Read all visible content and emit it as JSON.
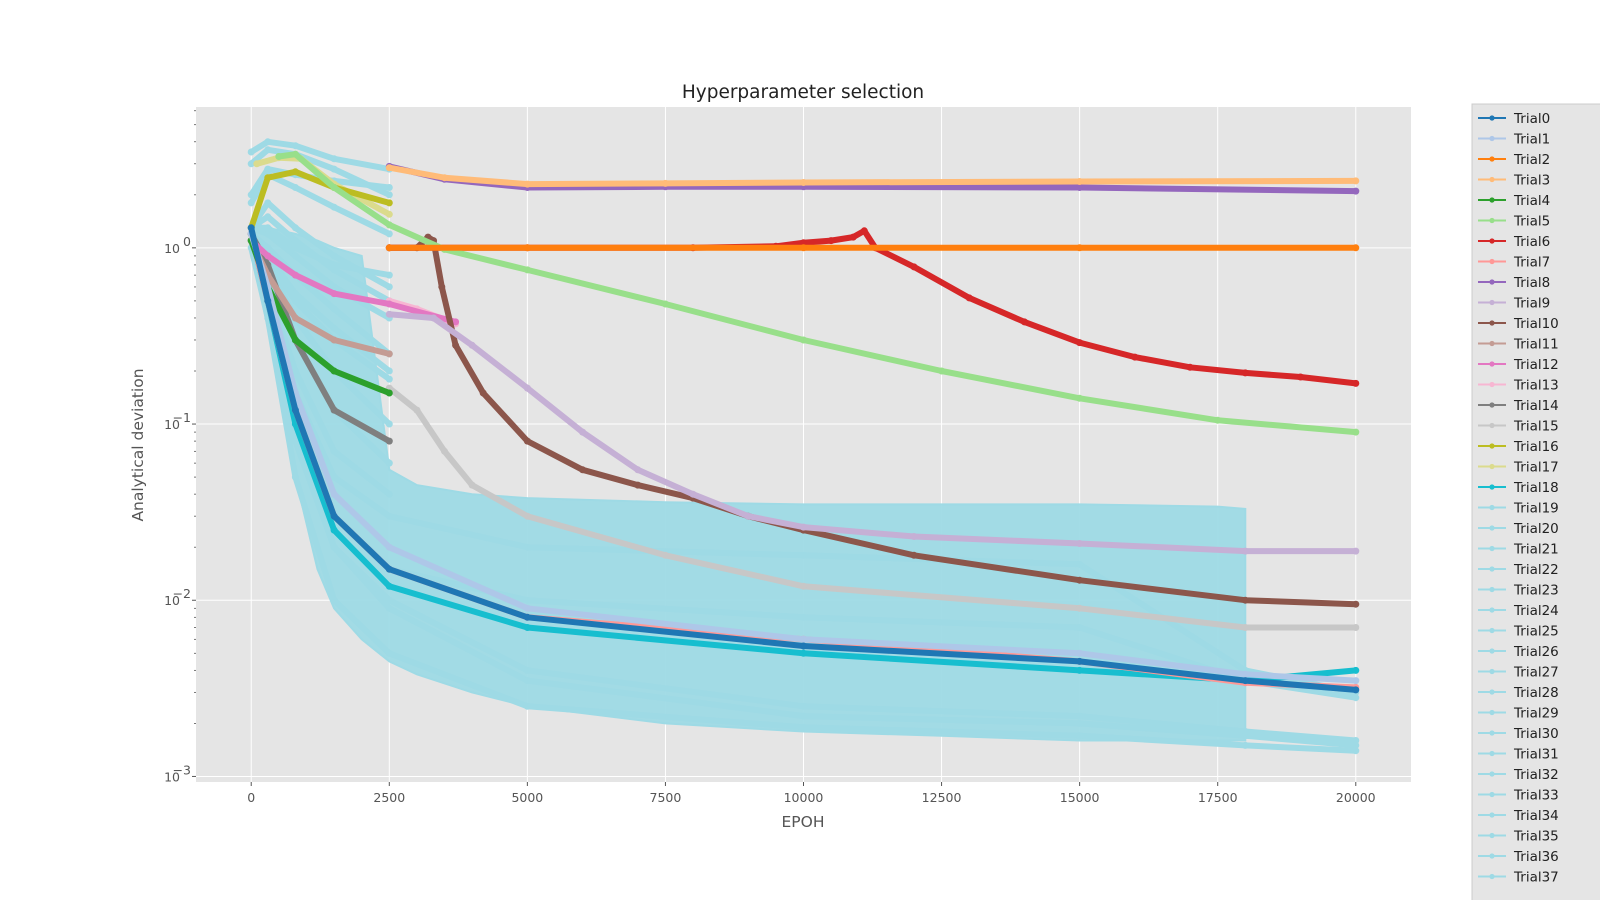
{
  "chart_data": {
    "type": "line",
    "title": "Hyperparameter selection",
    "xlabel": "EPOH",
    "ylabel": "Analytical deviation",
    "yscale": "log",
    "xlim": [
      -1000,
      21000
    ],
    "ylim": [
      0.00093,
      6.3
    ],
    "x_ticks": [
      0,
      2500,
      5000,
      7500,
      10000,
      12500,
      15000,
      17500,
      20000
    ],
    "x_tick_labels": [
      "0",
      "2500",
      "5000",
      "7500",
      "10000",
      "12500",
      "15000",
      "17500",
      "20000"
    ],
    "y_ticks": [
      0.001,
      0.01,
      0.1,
      1
    ],
    "y_tick_labels": [
      {
        "base": "10",
        "exp": "−3"
      },
      {
        "base": "10",
        "exp": "−2"
      },
      {
        "base": "10",
        "exp": "−1"
      },
      {
        "base": "10",
        "exp": "0"
      }
    ],
    "grid": true,
    "legend_position": "outside right",
    "series": [
      {
        "name": "Trial0",
        "color": "#1f77b4",
        "x": [
          0,
          300,
          800,
          1500,
          2500,
          5000,
          10000,
          15000,
          18000,
          20000
        ],
        "y": [
          1.3,
          0.5,
          0.12,
          0.03,
          0.015,
          0.008,
          0.0055,
          0.0045,
          0.0035,
          0.0031
        ]
      },
      {
        "name": "Trial1",
        "color": "#aec7e8",
        "x": [
          0,
          300,
          800,
          1500,
          2500,
          5000,
          10000,
          15000,
          18000,
          20000
        ],
        "y": [
          1.2,
          0.6,
          0.15,
          0.04,
          0.02,
          0.009,
          0.006,
          0.005,
          0.0038,
          0.0035
        ]
      },
      {
        "name": "Trial2",
        "color": "#ff7f0e",
        "x": [
          2500,
          5000,
          10000,
          15000,
          20000
        ],
        "y": [
          1.0,
          1.0,
          1.0,
          1.0,
          1.0
        ]
      },
      {
        "name": "Trial3",
        "color": "#ffbb78",
        "x": [
          2500,
          3500,
          5000,
          7500,
          10000,
          15000,
          20000
        ],
        "y": [
          2.85,
          2.5,
          2.3,
          2.32,
          2.35,
          2.38,
          2.4
        ]
      },
      {
        "name": "Trial4",
        "color": "#2ca02c",
        "x": [
          0,
          300,
          800,
          1500,
          2500
        ],
        "y": [
          1.1,
          0.6,
          0.3,
          0.2,
          0.15
        ]
      },
      {
        "name": "Trial5",
        "color": "#98df8a",
        "x": [
          500,
          800,
          1500,
          2500,
          3500,
          5000,
          7500,
          10000,
          12500,
          15000,
          17500,
          20000
        ],
        "y": [
          3.3,
          3.4,
          2.2,
          1.35,
          0.98,
          0.75,
          0.48,
          0.3,
          0.2,
          0.14,
          0.105,
          0.09
        ]
      },
      {
        "name": "Trial6",
        "color": "#d62728",
        "x": [
          2500,
          5000,
          8000,
          9500,
          10000,
          10500,
          10900,
          11100,
          11300,
          12000,
          13000,
          14000,
          15000,
          16000,
          17000,
          18000,
          19000,
          20000
        ],
        "y": [
          1.0,
          1.0,
          1.0,
          1.02,
          1.07,
          1.1,
          1.15,
          1.25,
          1.0,
          0.78,
          0.52,
          0.38,
          0.29,
          0.24,
          0.21,
          0.195,
          0.185,
          0.17
        ]
      },
      {
        "name": "Trial7",
        "color": "#ff9896",
        "x": [
          0,
          300,
          800,
          1500,
          2500,
          5000,
          10000,
          15000,
          18000,
          20000
        ],
        "y": [
          1.2,
          0.5,
          0.12,
          0.03,
          0.015,
          0.008,
          0.006,
          0.0045,
          0.0034,
          0.0032
        ]
      },
      {
        "name": "Trial8",
        "color": "#9467bd",
        "x": [
          2500,
          3500,
          5000,
          7500,
          10000,
          15000,
          20000
        ],
        "y": [
          2.9,
          2.45,
          2.2,
          2.22,
          2.22,
          2.2,
          2.1
        ]
      },
      {
        "name": "Trial9",
        "color": "#c5b0d5",
        "x": [
          2500,
          3300,
          4000,
          5000,
          6000,
          7000,
          8000,
          9000,
          10000,
          12000,
          15000,
          18000,
          20000
        ],
        "y": [
          0.42,
          0.4,
          0.28,
          0.16,
          0.09,
          0.055,
          0.04,
          0.03,
          0.026,
          0.023,
          0.021,
          0.019,
          0.019
        ]
      },
      {
        "name": "Trial10",
        "color": "#8c564b",
        "x": [
          2500,
          3000,
          3200,
          3300,
          3450,
          3700,
          4200,
          5000,
          6000,
          7000,
          8000,
          9000,
          10000,
          12000,
          15000,
          18000,
          20000
        ],
        "y": [
          1.0,
          1.0,
          1.15,
          1.1,
          0.6,
          0.28,
          0.15,
          0.08,
          0.055,
          0.045,
          0.038,
          0.03,
          0.025,
          0.018,
          0.013,
          0.01,
          0.0095
        ]
      },
      {
        "name": "Trial11",
        "color": "#c49c94",
        "x": [
          0,
          300,
          800,
          1500,
          2500
        ],
        "y": [
          1.1,
          0.7,
          0.4,
          0.3,
          0.25
        ]
      },
      {
        "name": "Trial12",
        "color": "#e377c2",
        "x": [
          0,
          300,
          800,
          1500,
          2500,
          3700
        ],
        "y": [
          1.1,
          0.9,
          0.7,
          0.55,
          0.48,
          0.38
        ]
      },
      {
        "name": "Trial13",
        "color": "#f7b6d2",
        "x": [
          2500,
          3000,
          3700
        ],
        "y": [
          0.5,
          0.45,
          0.37
        ]
      },
      {
        "name": "Trial14",
        "color": "#7f7f7f",
        "x": [
          0,
          300,
          800,
          1500,
          2500
        ],
        "y": [
          1.2,
          0.8,
          0.3,
          0.12,
          0.08
        ]
      },
      {
        "name": "Trial15",
        "color": "#c7c7c7",
        "x": [
          2500,
          3000,
          3500,
          4000,
          5000,
          7500,
          10000,
          15000,
          18000,
          20000
        ],
        "y": [
          0.16,
          0.12,
          0.07,
          0.045,
          0.03,
          0.018,
          0.012,
          0.009,
          0.007,
          0.007
        ]
      },
      {
        "name": "Trial16",
        "color": "#bcbd22",
        "x": [
          0,
          300,
          800,
          1500,
          2500
        ],
        "y": [
          1.3,
          2.5,
          2.7,
          2.2,
          1.8
        ]
      },
      {
        "name": "Trial17",
        "color": "#dbdb8d",
        "x": [
          100,
          500,
          900,
          1500,
          2500
        ],
        "y": [
          3.0,
          3.25,
          3.2,
          2.3,
          1.55
        ]
      },
      {
        "name": "Trial18",
        "color": "#17becf",
        "x": [
          0,
          300,
          800,
          1500,
          2500,
          5000,
          10000,
          15000,
          18000,
          20000
        ],
        "y": [
          1.2,
          0.5,
          0.1,
          0.025,
          0.012,
          0.007,
          0.005,
          0.004,
          0.0035,
          0.004
        ]
      },
      {
        "name": "Trial19",
        "color": "#9edae5",
        "x": [
          0,
          300,
          800,
          1500,
          2500
        ],
        "y": [
          3.5,
          4.0,
          3.8,
          3.2,
          2.8
        ]
      },
      {
        "name": "Trial20",
        "color": "#9edae5",
        "x": [
          0,
          300,
          800,
          1500,
          2500
        ],
        "y": [
          3.0,
          3.6,
          3.4,
          2.8,
          2.0
        ]
      },
      {
        "name": "Trial21",
        "color": "#9edae5",
        "x": [
          0,
          300,
          800,
          1500,
          2500
        ],
        "y": [
          1.8,
          2.6,
          2.2,
          1.7,
          1.2
        ]
      },
      {
        "name": "Trial22",
        "color": "#9edae5",
        "x": [
          0,
          300,
          800,
          1500,
          2500
        ],
        "y": [
          1.3,
          1.8,
          1.3,
          0.9,
          0.6
        ]
      },
      {
        "name": "Trial23",
        "color": "#9edae5",
        "x": [
          0,
          300,
          800,
          1500,
          2500
        ],
        "y": [
          1.3,
          1.2,
          0.9,
          0.6,
          0.4
        ]
      },
      {
        "name": "Trial24",
        "color": "#9edae5",
        "x": [
          0,
          300,
          800,
          1500,
          2500
        ],
        "y": [
          1.2,
          1.0,
          0.7,
          0.45,
          0.25
        ]
      },
      {
        "name": "Trial25",
        "color": "#9edae5",
        "x": [
          0,
          300,
          800,
          1500,
          2500
        ],
        "y": [
          1.2,
          0.9,
          0.55,
          0.35,
          0.2
        ]
      },
      {
        "name": "Trial26",
        "color": "#9edae5",
        "x": [
          0,
          300,
          800,
          1500,
          2500
        ],
        "y": [
          1.2,
          0.8,
          0.4,
          0.2,
          0.1
        ]
      },
      {
        "name": "Trial27",
        "color": "#9edae5",
        "x": [
          0,
          300,
          800,
          1500,
          2500
        ],
        "y": [
          1.1,
          0.7,
          0.3,
          0.12,
          0.06
        ]
      },
      {
        "name": "Trial28",
        "color": "#9edae5",
        "x": [
          0,
          300,
          800,
          1500,
          2500
        ],
        "y": [
          1.1,
          0.6,
          0.2,
          0.07,
          0.04
        ]
      },
      {
        "name": "Trial29",
        "color": "#9edae5",
        "x": [
          0,
          300,
          800,
          1500,
          2500,
          5000,
          10000,
          15000,
          18000,
          20000
        ],
        "y": [
          1.1,
          0.5,
          0.1,
          0.02,
          0.01,
          0.004,
          0.0025,
          0.0022,
          0.0018,
          0.0016
        ]
      },
      {
        "name": "Trial30",
        "color": "#9edae5",
        "x": [
          0,
          300,
          800,
          1500,
          2500,
          5000,
          10000,
          15000,
          18000,
          20000
        ],
        "y": [
          1.0,
          0.4,
          0.05,
          0.01,
          0.005,
          0.0025,
          0.0019,
          0.0017,
          0.0015,
          0.0014
        ]
      },
      {
        "name": "Trial31",
        "color": "#9edae5",
        "x": [
          0,
          300,
          800,
          1500,
          2500,
          5000,
          10000,
          15000,
          18000,
          20000
        ],
        "y": [
          1.2,
          0.45,
          0.08,
          0.02,
          0.009,
          0.0035,
          0.0022,
          0.002,
          0.0017,
          0.0015
        ]
      },
      {
        "name": "Trial32",
        "color": "#9edae5",
        "x": [
          0,
          300,
          800,
          1500,
          2500
        ],
        "y": [
          1.2,
          0.85,
          0.5,
          0.3,
          0.18
        ]
      },
      {
        "name": "Trial33",
        "color": "#9edae5",
        "x": [
          0,
          300,
          800,
          1500,
          2500
        ],
        "y": [
          1.3,
          1.5,
          1.1,
          0.75,
          0.5
        ]
      },
      {
        "name": "Trial34",
        "color": "#9edae5",
        "x": [
          0,
          300,
          800,
          1500,
          2500
        ],
        "y": [
          1.3,
          1.3,
          1.0,
          0.8,
          0.7
        ]
      },
      {
        "name": "Trial35",
        "color": "#9edae5",
        "x": [
          0,
          300,
          800,
          1500,
          2500
        ],
        "y": [
          2.0,
          2.8,
          2.6,
          2.4,
          2.2
        ]
      },
      {
        "name": "Trial36",
        "color": "#9edae5",
        "x": [
          0,
          300,
          800,
          1500,
          2500,
          5000,
          10000,
          15000,
          18000,
          20000
        ],
        "y": [
          1.1,
          0.5,
          0.12,
          0.03,
          0.015,
          0.01,
          0.008,
          0.007,
          0.0035,
          0.0028
        ]
      },
      {
        "name": "Trial37",
        "color": "#9edae5",
        "x": [
          0,
          300,
          800,
          1500,
          2500,
          5000,
          10000,
          15000,
          18000,
          20000
        ],
        "y": [
          1.2,
          0.6,
          0.15,
          0.05,
          0.03,
          0.02,
          0.018,
          0.016,
          0.004,
          0.003
        ]
      }
    ],
    "noise_band": {
      "color": "#9edae5",
      "x": [
        0,
        300,
        800,
        1200,
        1500,
        2000,
        2500,
        3000,
        4000,
        5000,
        7500,
        10000,
        12500,
        15000,
        17500,
        18000
      ],
      "low": [
        1.0,
        0.35,
        0.05,
        0.015,
        0.009,
        0.006,
        0.0045,
        0.0038,
        0.003,
        0.0025,
        0.002,
        0.0018,
        0.0017,
        0.0016,
        0.0016,
        0.0016
      ],
      "high": [
        1.4,
        1.3,
        1.2,
        1.1,
        1.0,
        0.9,
        0.055,
        0.045,
        0.04,
        0.038,
        0.036,
        0.035,
        0.035,
        0.035,
        0.034,
        0.033
      ]
    }
  }
}
